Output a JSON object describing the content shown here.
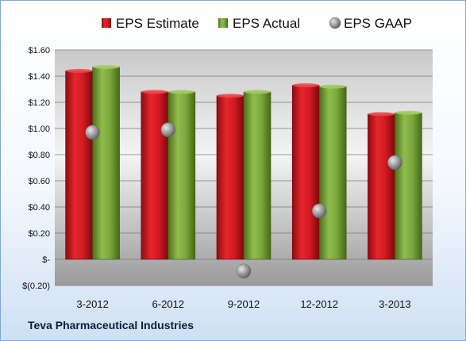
{
  "caption": "Teva Pharmaceutical Industries",
  "colors": {
    "estimate": "#c8161d",
    "actual": "#77a33a",
    "gaap": "#9a9a9a"
  },
  "chart_data": {
    "type": "bar",
    "categories": [
      "3-2012",
      "6-2012",
      "9-2012",
      "12-2012",
      "3-2013"
    ],
    "series": [
      {
        "name": "EPS Estimate",
        "kind": "bar",
        "values": [
          1.44,
          1.28,
          1.25,
          1.33,
          1.11
        ]
      },
      {
        "name": "EPS Actual",
        "kind": "bar",
        "values": [
          1.47,
          1.28,
          1.28,
          1.32,
          1.12
        ]
      },
      {
        "name": "EPS GAAP",
        "kind": "scatter",
        "values": [
          0.97,
          0.99,
          -0.09,
          0.37,
          0.74
        ]
      }
    ],
    "ylim": [
      -0.2,
      1.6
    ],
    "yticks": [
      {
        "value": 1.6,
        "label": "$1.60"
      },
      {
        "value": 1.4,
        "label": "$1.40"
      },
      {
        "value": 1.2,
        "label": "$1.20"
      },
      {
        "value": 1.0,
        "label": "$1.00"
      },
      {
        "value": 0.8,
        "label": "$0.80"
      },
      {
        "value": 0.6,
        "label": "$0.60"
      },
      {
        "value": 0.4,
        "label": "$0.40"
      },
      {
        "value": 0.2,
        "label": "$0.20"
      },
      {
        "value": 0.0,
        "label": "$-"
      },
      {
        "value": -0.2,
        "label": "$(0.20)"
      }
    ],
    "grid": true,
    "legend": "top"
  }
}
